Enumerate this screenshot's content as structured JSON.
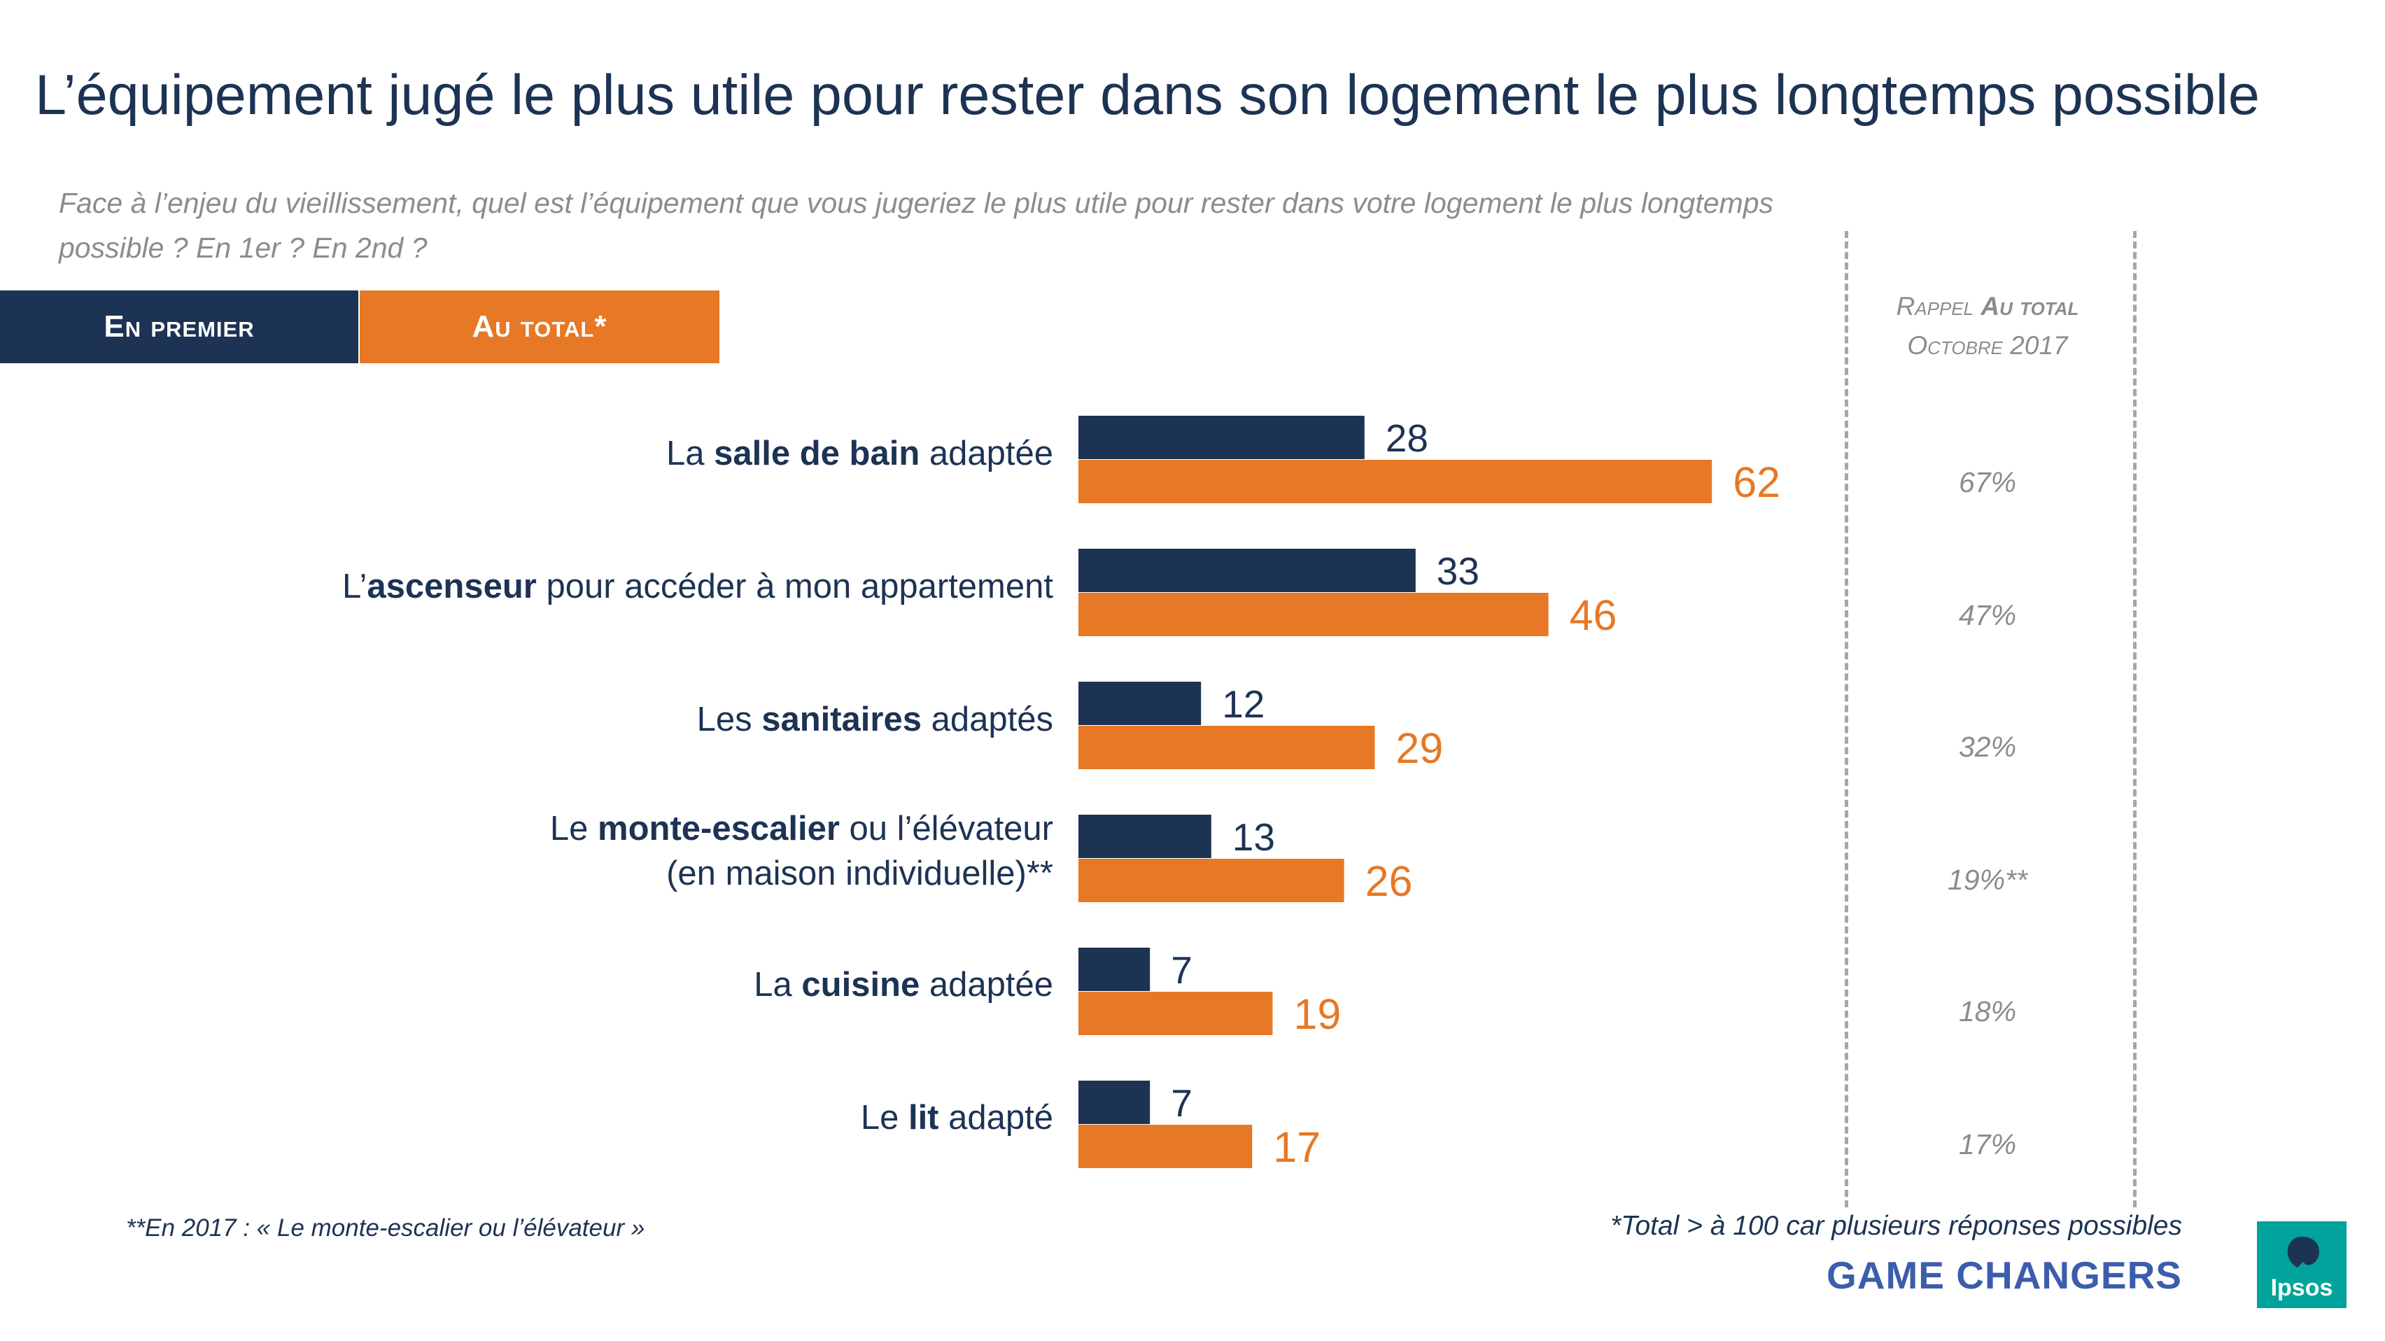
{
  "title": "L’équipement jugé le plus utile pour rester dans son logement le plus longtemps possible",
  "subtitle": "Face à l’enjeu du vieillissement, quel est l’équipement que vous jugeriez le plus utile pour rester dans votre logement le plus longtemps possible ? En 1er ? En 2nd ?",
  "legend": {
    "first_label": "En premier",
    "total_label": "Au total*"
  },
  "rappel": {
    "line1_prefix": "Rappel ",
    "line1_bold": "Au total",
    "line2": "Octobre 2017"
  },
  "categories": [
    {
      "pre": "La ",
      "bold": "salle de bain",
      "post": " adaptée",
      "line2": ""
    },
    {
      "pre": "L’",
      "bold": "ascenseur",
      "post": " pour accéder à mon appartement",
      "line2": ""
    },
    {
      "pre": "Les ",
      "bold": "sanitaires",
      "post": " adaptés",
      "line2": ""
    },
    {
      "pre": "Le ",
      "bold": "monte-escalier",
      "post": " ou l’élévateur",
      "line2": "(en maison individuelle)**"
    },
    {
      "pre": "La ",
      "bold": "cuisine",
      "post": " adaptée",
      "line2": ""
    },
    {
      "pre": "Le ",
      "bold": "lit",
      "post": " adapté",
      "line2": ""
    }
  ],
  "rappel_values": [
    "67%",
    "47%",
    "32%",
    "19%**",
    "18%",
    "17%"
  ],
  "colors": {
    "first": "#1d3354",
    "total": "#e77825",
    "rappel": "#8c8c8c"
  },
  "chart_data": {
    "type": "bar",
    "orientation": "horizontal",
    "categories": [
      "La salle de bain adaptée",
      "L’ascenseur pour accéder à mon appartement",
      "Les sanitaires adaptés",
      "Le monte-escalier ou l’élévateur (en maison individuelle)**",
      "La cuisine adaptée",
      "Le lit adapté"
    ],
    "series": [
      {
        "name": "En premier",
        "values": [
          28,
          33,
          12,
          13,
          7,
          7
        ]
      },
      {
        "name": "Au total*",
        "values": [
          62,
          46,
          29,
          26,
          19,
          17
        ]
      }
    ],
    "xlim": [
      0,
      100
    ],
    "title": "L’équipement jugé le plus utile pour rester dans son logement le plus longtemps possible",
    "xlabel": "",
    "ylabel": ""
  },
  "footnotes": {
    "left": "**En 2017 : « Le monte-escalier ou l’élévateur »",
    "right": "*Total > à 100 car plusieurs réponses possibles"
  },
  "brand": {
    "tagline": "GAME CHANGERS",
    "logo_text": "Ipsos"
  }
}
